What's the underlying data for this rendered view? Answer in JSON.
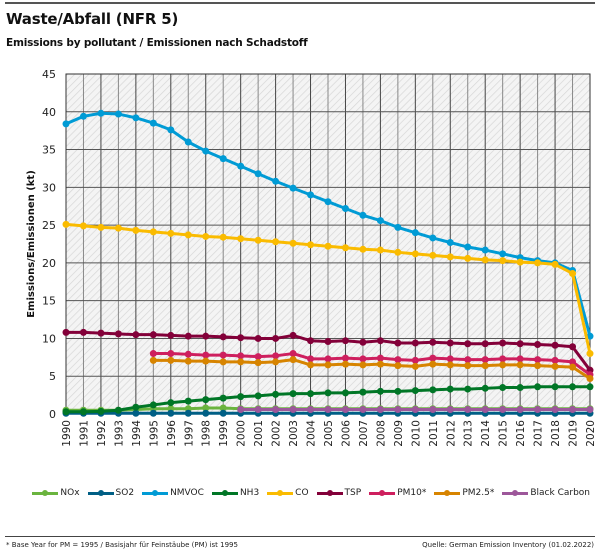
{
  "header": {
    "title": "Waste/Abfall (NFR 5)",
    "subtitle": "Emissions by pollutant / Emissionen nach Schadstoff"
  },
  "footer": {
    "footnote": "* Base Year for PM = 1995 / Basisjahr für Feinstäube (PM) ist 1995",
    "source": "Quelle: German Emission Inventory (01.02.2022)"
  },
  "chart_data": {
    "type": "line",
    "title": "Waste/Abfall (NFR 5)",
    "subtitle": "Emissions by pollutant / Emissionen nach Schadstoff",
    "xlabel": "",
    "ylabel": "Emissions/Emissionen (kt)",
    "ylim": [
      0,
      45
    ],
    "yticks": [
      0,
      5,
      10,
      15,
      20,
      25,
      30,
      35,
      40,
      45
    ],
    "grid": true,
    "legend_position": "bottom",
    "x": [
      "1990",
      "1991",
      "1992",
      "1993",
      "1994",
      "1995",
      "1996",
      "1997",
      "1998",
      "1999",
      "2000",
      "2001",
      "2002",
      "2003",
      "2004",
      "2005",
      "2006",
      "2007",
      "2008",
      "2009",
      "2010",
      "2011",
      "2012",
      "2013",
      "2014",
      "2015",
      "2016",
      "2017",
      "2018",
      "2019",
      "2020"
    ],
    "series": [
      {
        "name": "NOx",
        "color": "#6ab43e",
        "start": "1990",
        "values": [
          0.5,
          0.5,
          0.5,
          0.5,
          0.6,
          0.7,
          0.7,
          0.7,
          0.8,
          0.8,
          0.7,
          0.7,
          0.7,
          0.7,
          0.7,
          0.7,
          0.7,
          0.7,
          0.7,
          0.7,
          0.7,
          0.7,
          0.7,
          0.7,
          0.7,
          0.7,
          0.7,
          0.7,
          0.7,
          0.7,
          0.7
        ]
      },
      {
        "name": "SO2",
        "color": "#005f85",
        "start": "1990",
        "values": [
          0.1,
          0.1,
          0.1,
          0.1,
          0.1,
          0.1,
          0.1,
          0.1,
          0.1,
          0.1,
          0.1,
          0.1,
          0.1,
          0.1,
          0.1,
          0.1,
          0.1,
          0.1,
          0.1,
          0.1,
          0.1,
          0.1,
          0.1,
          0.1,
          0.1,
          0.1,
          0.1,
          0.1,
          0.1,
          0.1,
          0.1
        ]
      },
      {
        "name": "NMVOC",
        "color": "#009bd5",
        "start": "1990",
        "values": [
          38.4,
          39.4,
          39.8,
          39.7,
          39.2,
          38.5,
          37.6,
          36.0,
          34.8,
          33.8,
          32.8,
          31.8,
          30.8,
          29.9,
          29.0,
          28.1,
          27.2,
          26.3,
          25.6,
          24.7,
          24.0,
          23.3,
          22.7,
          22.1,
          21.7,
          21.2,
          20.7,
          20.3,
          20.0,
          19.0,
          10.3
        ]
      },
      {
        "name": "NH3",
        "color": "#007626",
        "start": "1990",
        "values": [
          0.3,
          0.3,
          0.35,
          0.5,
          0.9,
          1.2,
          1.5,
          1.7,
          1.9,
          2.1,
          2.3,
          2.4,
          2.6,
          2.7,
          2.7,
          2.8,
          2.8,
          2.9,
          3.0,
          3.0,
          3.1,
          3.2,
          3.3,
          3.3,
          3.4,
          3.5,
          3.5,
          3.6,
          3.6,
          3.6,
          3.6
        ]
      },
      {
        "name": "CO",
        "color": "#fabb00",
        "start": "1990",
        "values": [
          25.1,
          24.9,
          24.7,
          24.6,
          24.3,
          24.1,
          23.9,
          23.7,
          23.5,
          23.4,
          23.2,
          23.0,
          22.8,
          22.6,
          22.4,
          22.2,
          22.0,
          21.8,
          21.7,
          21.4,
          21.2,
          21.0,
          20.8,
          20.6,
          20.4,
          20.3,
          20.1,
          20.0,
          19.8,
          18.6,
          8.0
        ]
      },
      {
        "name": "TSP",
        "color": "#830039",
        "start": "1990",
        "values": [
          10.8,
          10.8,
          10.7,
          10.6,
          10.5,
          10.5,
          10.4,
          10.3,
          10.3,
          10.2,
          10.1,
          10.0,
          10.0,
          10.4,
          9.7,
          9.6,
          9.7,
          9.5,
          9.7,
          9.4,
          9.4,
          9.5,
          9.4,
          9.3,
          9.3,
          9.4,
          9.3,
          9.2,
          9.1,
          8.9,
          5.8
        ]
      },
      {
        "name": "PM10*",
        "color": "#ce1f5e",
        "start": "1995",
        "values": [
          8.0,
          8.0,
          7.9,
          7.8,
          7.8,
          7.7,
          7.6,
          7.7,
          8.0,
          7.3,
          7.3,
          7.4,
          7.3,
          7.4,
          7.2,
          7.1,
          7.4,
          7.3,
          7.2,
          7.2,
          7.3,
          7.3,
          7.2,
          7.1,
          6.9,
          5.2
        ]
      },
      {
        "name": "PM2.5*",
        "color": "#d78400",
        "start": "1995",
        "values": [
          7.1,
          7.1,
          7.0,
          7.0,
          6.9,
          6.9,
          6.8,
          6.9,
          7.2,
          6.5,
          6.5,
          6.6,
          6.5,
          6.6,
          6.4,
          6.3,
          6.6,
          6.5,
          6.4,
          6.4,
          6.5,
          6.5,
          6.4,
          6.3,
          6.2,
          4.7
        ]
      },
      {
        "name": "Black Carbon",
        "color": "#9d579a",
        "start": "2000",
        "values": [
          0.6,
          0.6,
          0.6,
          0.6,
          0.6,
          0.6,
          0.6,
          0.6,
          0.6,
          0.6,
          0.6,
          0.6,
          0.6,
          0.6,
          0.6,
          0.6,
          0.6,
          0.6,
          0.6,
          0.6,
          0.6
        ]
      }
    ],
    "draw_order": [
      "NOx",
      "SO2",
      "NMVOC",
      "NH3",
      "CO",
      "TSP",
      "PM10*",
      "PM2.5*",
      "Black Carbon"
    ]
  }
}
